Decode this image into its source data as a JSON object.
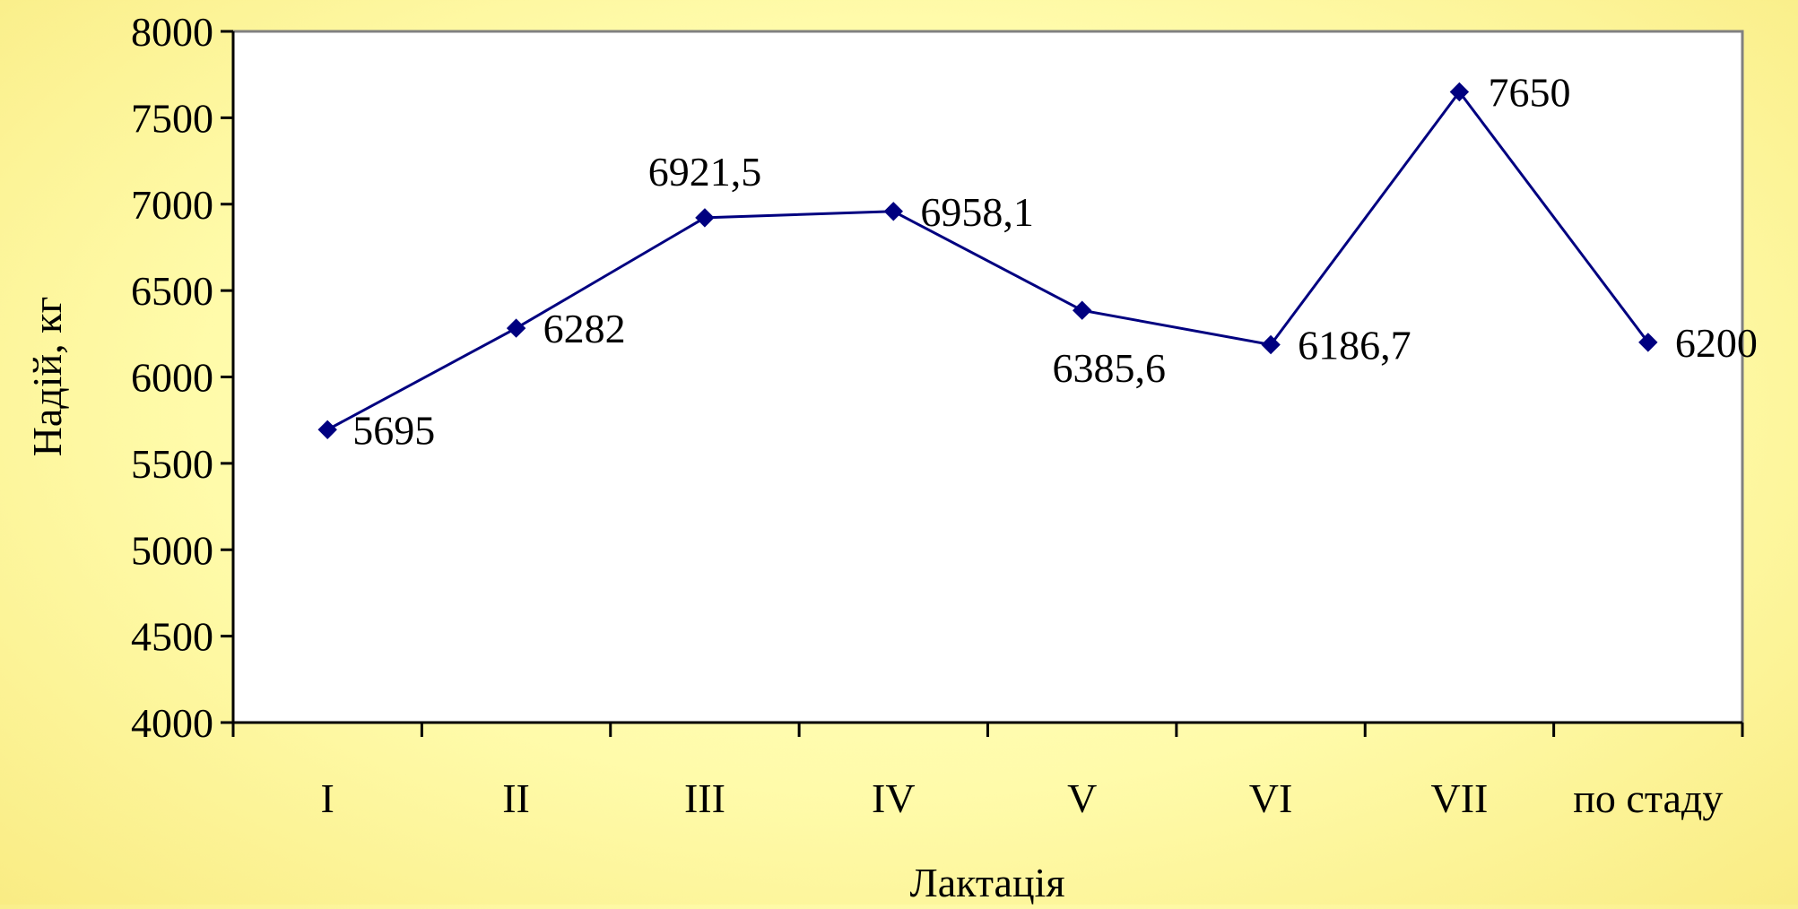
{
  "chart_data": {
    "type": "line",
    "title": "",
    "xlabel": "Лактація",
    "ylabel": "Надій, кг",
    "categories": [
      "I",
      "II",
      "III",
      "IV",
      "V",
      "VI",
      "VII",
      "по стаду"
    ],
    "series": [
      {
        "values": [
          5695,
          6282,
          6921.5,
          6958.1,
          6385.6,
          6186.7,
          7650,
          6200
        ],
        "labels": [
          "5695",
          "6282",
          "6921,5",
          "6958,1",
          "6385,6",
          "6186,7",
          "7650",
          "6200"
        ],
        "color": "#000080",
        "marker": "diamond"
      }
    ],
    "ylim": [
      4000,
      8000
    ],
    "yticks": [
      "4000",
      "4500",
      "5000",
      "5500",
      "6000",
      "6500",
      "7000",
      "7500",
      "8000"
    ],
    "grid": false,
    "legend": "none",
    "plot_background": "#ffffff"
  }
}
